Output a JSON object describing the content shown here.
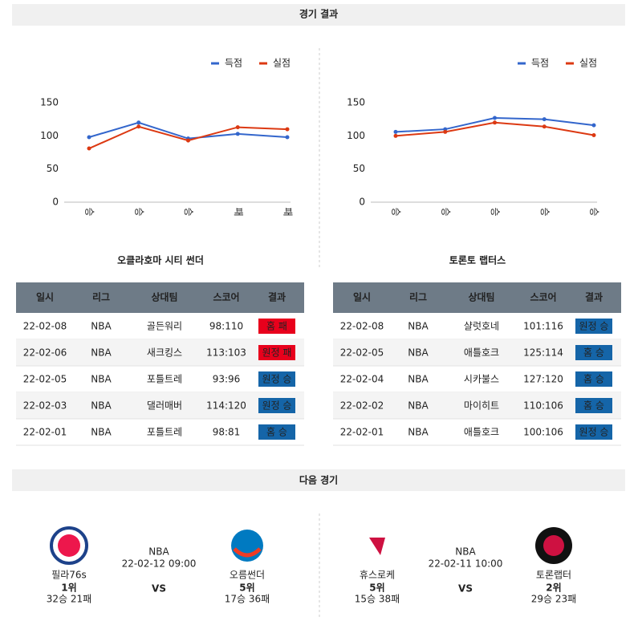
{
  "sections": {
    "results": "경기 결과",
    "next": "다음 경기"
  },
  "chart_data": [
    {
      "type": "line",
      "categories": [
        "승",
        "승",
        "승",
        "패",
        "패"
      ],
      "ylim": [
        0,
        150
      ],
      "yticks": [
        0,
        50,
        100,
        150
      ],
      "grid": false,
      "legend": "top-right",
      "series": [
        {
          "name": "득점",
          "color": "#3366cc",
          "values": [
            98,
            120,
            96,
            103,
            98
          ]
        },
        {
          "name": "실점",
          "color": "#dc3912",
          "values": [
            81,
            114,
            93,
            113,
            110
          ]
        }
      ]
    },
    {
      "type": "line",
      "categories": [
        "승",
        "승",
        "승",
        "승",
        "승"
      ],
      "ylim": [
        0,
        150
      ],
      "yticks": [
        0,
        50,
        100,
        150
      ],
      "grid": false,
      "legend": "top-right",
      "series": [
        {
          "name": "득점",
          "color": "#3366cc",
          "values": [
            106,
            110,
            127,
            125,
            116
          ]
        },
        {
          "name": "실점",
          "color": "#dc3912",
          "values": [
            100,
            106,
            120,
            114,
            101
          ]
        }
      ]
    }
  ],
  "tables": [
    {
      "team": "오클라호마 시티 썬더",
      "columns": [
        "일시",
        "리그",
        "상대팀",
        "스코어",
        "결과"
      ],
      "rows": [
        {
          "date": "22-02-08",
          "league": "NBA",
          "opponent": "골든워리",
          "score": "98:110",
          "result": "홈 패",
          "result_color": "#e8001c"
        },
        {
          "date": "22-02-06",
          "league": "NBA",
          "opponent": "새크킹스",
          "score": "113:103",
          "result": "원정 패",
          "result_color": "#e8001c"
        },
        {
          "date": "22-02-05",
          "league": "NBA",
          "opponent": "포틀트레",
          "score": "93:96",
          "result": "원정 승",
          "result_color": "#1565a8"
        },
        {
          "date": "22-02-03",
          "league": "NBA",
          "opponent": "댈러매버",
          "score": "114:120",
          "result": "원정 승",
          "result_color": "#1565a8"
        },
        {
          "date": "22-02-01",
          "league": "NBA",
          "opponent": "포틀트레",
          "score": "98:81",
          "result": "홈 승",
          "result_color": "#1565a8"
        }
      ]
    },
    {
      "team": "토론토 랩터스",
      "columns": [
        "일시",
        "리그",
        "상대팀",
        "스코어",
        "결과"
      ],
      "rows": [
        {
          "date": "22-02-08",
          "league": "NBA",
          "opponent": "샬럿호네",
          "score": "101:116",
          "result": "원정 승",
          "result_color": "#1565a8"
        },
        {
          "date": "22-02-05",
          "league": "NBA",
          "opponent": "애틀호크",
          "score": "125:114",
          "result": "홈 승",
          "result_color": "#1565a8"
        },
        {
          "date": "22-02-04",
          "league": "NBA",
          "opponent": "시카불스",
          "score": "127:120",
          "result": "홈 승",
          "result_color": "#1565a8"
        },
        {
          "date": "22-02-02",
          "league": "NBA",
          "opponent": "마이히트",
          "score": "110:106",
          "result": "홈 승",
          "result_color": "#1565a8"
        },
        {
          "date": "22-02-01",
          "league": "NBA",
          "opponent": "애틀호크",
          "score": "100:106",
          "result": "원정 승",
          "result_color": "#1565a8"
        }
      ]
    }
  ],
  "next_games": [
    {
      "league": "NBA",
      "datetime": "22-02-12 09:00",
      "vs": "VS",
      "home": {
        "name": "필라76s",
        "rank": "1위",
        "record": "32승 21패"
      },
      "away": {
        "name": "오름썬더",
        "rank": "5위",
        "record": "17승 36패"
      }
    },
    {
      "league": "NBA",
      "datetime": "22-02-11 10:00",
      "vs": "VS",
      "home": {
        "name": "휴스로케",
        "rank": "5위",
        "record": "15승 38패"
      },
      "away": {
        "name": "토론랩터",
        "rank": "2위",
        "record": "29승 23패"
      }
    }
  ]
}
